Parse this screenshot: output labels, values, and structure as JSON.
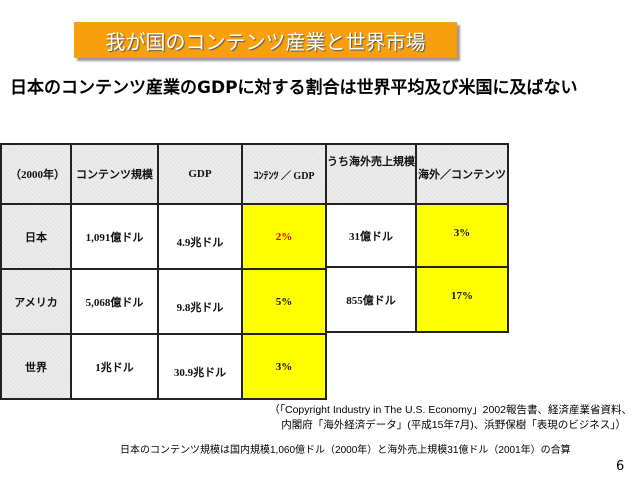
{
  "title": "我が国のコンテンツ産業と世界市場",
  "subtitle": "日本のコンテンツ産業のGDPに対する割合は世界平均及び米国に及ばない",
  "table": {
    "headers": [
      "（2000年）",
      "コンテンツ規模",
      "GDP",
      "ｺﾝﾃﾝﾂ ／ GDP",
      "うち海外売上規模",
      "海外／コンテンツ"
    ],
    "rows": [
      {
        "country": "日本",
        "content": "1,091億ドル",
        "gdp": "4.9兆ドル",
        "ratio": "2%",
        "overseas": "31億ドル",
        "overseas_ratio": "3%"
      },
      {
        "country": "アメリカ",
        "content": "5,068億ドル",
        "gdp": "9.8兆ドル",
        "ratio": "5%",
        "overseas": "855億ドル",
        "overseas_ratio": "17%"
      },
      {
        "country": "世界",
        "content": "1兆ドル",
        "gdp": "30.9兆ドル",
        "ratio": "3%"
      }
    ]
  },
  "source_line1": "（「Copyright Industry in The U.S. Economy」2002報告書、経済産業省資料、",
  "source_line2": "内閣府「海外経済データ」(平成15年7月)、浜野保樹「表現のビジネス」）",
  "note": "日本のコンテンツ規模は国内規模1,060億ドル（2000年）と海外売上規模31億ドル（2001年）の合算",
  "page_number": "6",
  "colors": {
    "banner": "#f7a00c",
    "highlight": "#ffff00",
    "highlight_text_japan": "#dd0000"
  }
}
